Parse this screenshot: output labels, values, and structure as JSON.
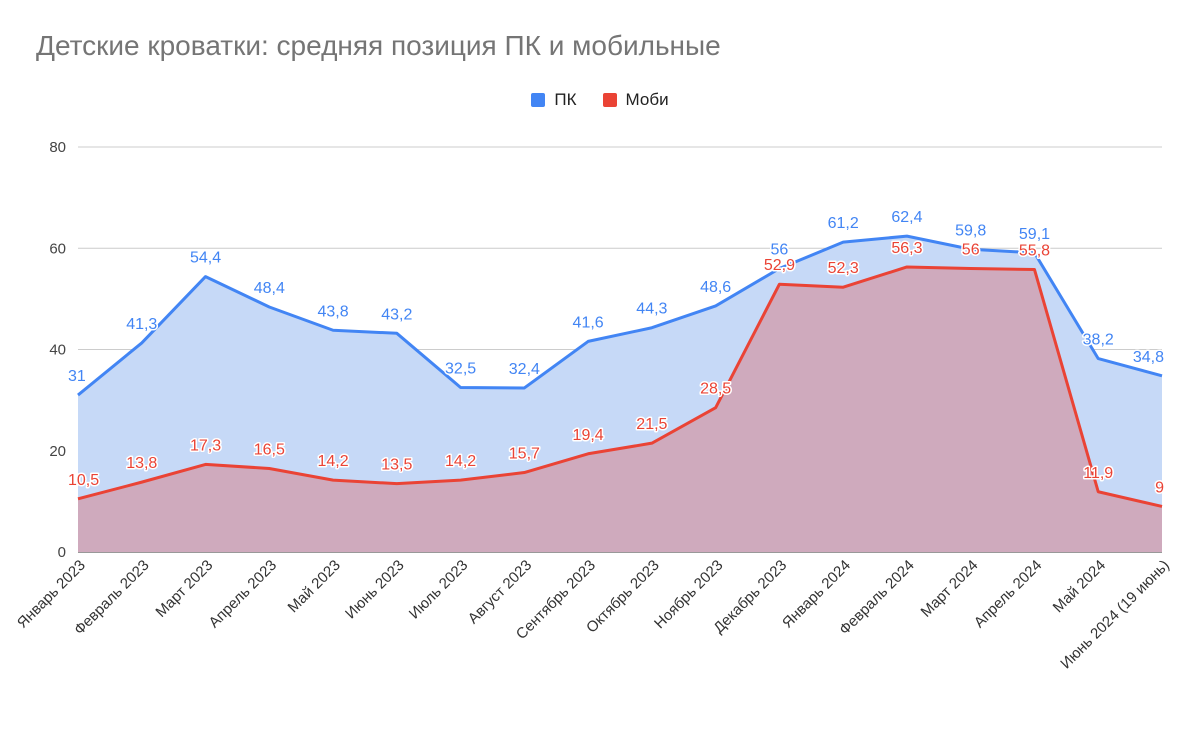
{
  "chart_data": {
    "type": "area",
    "title": "Детские кроватки: средняя позиция ПК и мобильные",
    "xlabel": "",
    "ylabel": "",
    "ylim": [
      0,
      80
    ],
    "yticks": [
      "0",
      "20",
      "40",
      "60",
      "80"
    ],
    "grid": true,
    "legend_position": "top-center",
    "categories": [
      "Январь 2023",
      "Февраль 2023",
      "Март 2023",
      "Апрель 2023",
      "Май 2023",
      "Июнь 2023",
      "Июль 2023",
      "Август 2023",
      "Сентябрь 2023",
      "Октябрь 2023",
      "Ноябрь 2023",
      "Декабрь 2023",
      "Январь 2024",
      "Февраль 2024",
      "Март 2024",
      "Апрель 2024",
      "Май 2024",
      "Июнь 2024 (19 июнь)"
    ],
    "series": [
      {
        "name": "ПК",
        "color": "#4285f4",
        "fill": "#c6d9f7",
        "values": [
          31,
          41.3,
          54.4,
          48.4,
          43.8,
          43.2,
          32.5,
          32.4,
          41.6,
          44.3,
          48.6,
          56,
          61.2,
          62.4,
          59.8,
          59.1,
          38.2,
          34.8
        ],
        "labels": [
          "31",
          "41,3",
          "54,4",
          "48,4",
          "43,8",
          "43,2",
          "32,5",
          "32,4",
          "41,6",
          "44,3",
          "48,6",
          "56",
          "61,2",
          "62,4",
          "59,8",
          "59,1",
          "38,2",
          "34,8"
        ]
      },
      {
        "name": "Моби",
        "color": "#ea4335",
        "fill": "#cfaabd",
        "values": [
          10.5,
          13.8,
          17.3,
          16.5,
          14.2,
          13.5,
          14.2,
          15.7,
          19.4,
          21.5,
          28.5,
          52.9,
          52.3,
          56.3,
          56,
          55.8,
          11.9,
          9
        ],
        "labels": [
          "10,5",
          "13,8",
          "17,3",
          "16,5",
          "14,2",
          "13,5",
          "14,2",
          "15,7",
          "19,4",
          "21,5",
          "28,5",
          "52,9",
          "52,3",
          "56,3",
          "56",
          "55,8",
          "11,9",
          "9"
        ]
      }
    ]
  }
}
